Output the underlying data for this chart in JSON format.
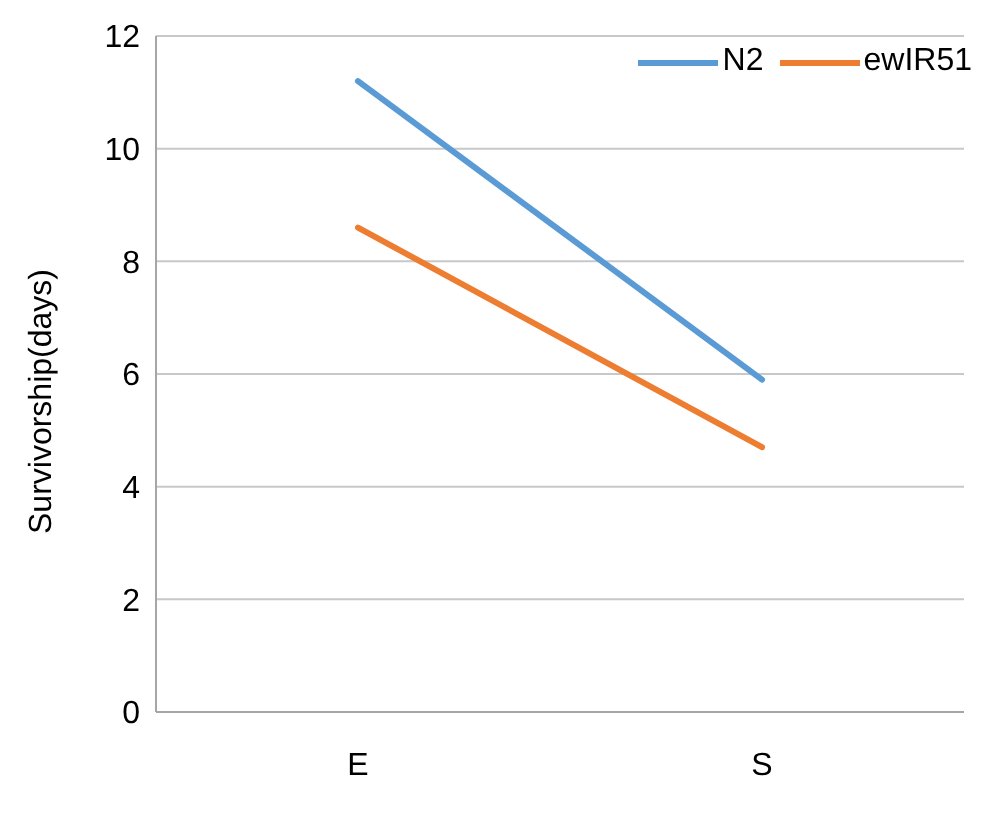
{
  "chart_data": {
    "type": "line",
    "ylabel": "Survivorship(days)",
    "categories": [
      "E",
      "S"
    ],
    "series": [
      {
        "name": "N2",
        "color": "#5b9bd5",
        "values": [
          11.2,
          5.9
        ]
      },
      {
        "name": "ewIR51",
        "color": "#ed7d31",
        "values": [
          8.6,
          4.7
        ]
      }
    ],
    "ylim": [
      0,
      12
    ],
    "yticks": [
      0,
      2,
      4,
      6,
      8,
      10,
      12
    ],
    "grid": "y",
    "legend": "top right",
    "marker": "none"
  }
}
